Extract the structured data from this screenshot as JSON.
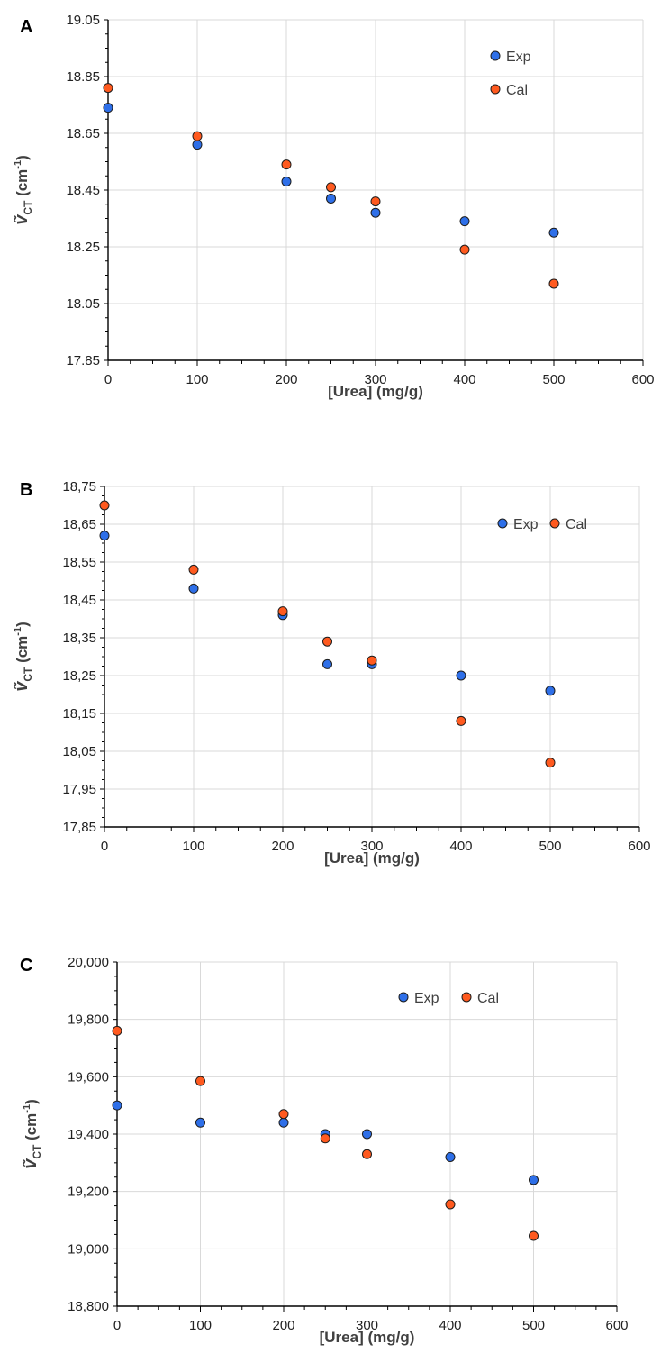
{
  "chart_data": [
    {
      "type": "scatter",
      "panel_label": "A",
      "xlabel": "[Urea] (mg/g)",
      "ylabel_main": "ṽ",
      "ylabel_sub": "CT",
      "ylabel_unit": "(cm",
      "ylabel_sup": "-1",
      "ylabel_close": ")",
      "xlim": [
        0,
        600
      ],
      "ylim": [
        17.85,
        19.05
      ],
      "xticks": [
        0,
        100,
        200,
        300,
        400,
        500,
        600
      ],
      "yticks": [
        17.85,
        18.05,
        18.25,
        18.45,
        18.65,
        18.85,
        19.05
      ],
      "ytick_labels": [
        "17.85",
        "18.05",
        "18.25",
        "18.45",
        "18.65",
        "18.85",
        "19.05"
      ],
      "grid": true,
      "legend_position": "top-right, stacked",
      "series": [
        {
          "name": "Exp",
          "color": "#2e6fe8",
          "x": [
            0,
            100,
            200,
            250,
            300,
            400,
            500
          ],
          "y": [
            18.74,
            18.61,
            18.48,
            18.42,
            18.37,
            18.34,
            18.3
          ]
        },
        {
          "name": "Cal",
          "color": "#ff5a1f",
          "x": [
            0,
            100,
            200,
            250,
            300,
            400,
            500
          ],
          "y": [
            18.81,
            18.64,
            18.54,
            18.46,
            18.41,
            18.24,
            18.12
          ]
        }
      ]
    },
    {
      "type": "scatter",
      "panel_label": "B",
      "xlabel": "[Urea] (mg/g)",
      "ylabel_main": "ṽ",
      "ylabel_sub": "CT",
      "ylabel_unit": "(cm",
      "ylabel_sup": "-1",
      "ylabel_close": ")",
      "xlim": [
        0,
        600
      ],
      "ylim": [
        17.85,
        18.75
      ],
      "xticks": [
        0,
        100,
        200,
        300,
        400,
        500,
        600
      ],
      "yticks": [
        17.85,
        17.95,
        18.05,
        18.15,
        18.25,
        18.35,
        18.45,
        18.55,
        18.65,
        18.75
      ],
      "ytick_labels": [
        "17,85",
        "17,95",
        "18,05",
        "18,15",
        "18,25",
        "18,35",
        "18,45",
        "18,55",
        "18,65",
        "18,75"
      ],
      "grid": true,
      "legend_position": "top-right, inline",
      "series": [
        {
          "name": "Exp",
          "color": "#2e6fe8",
          "x": [
            0,
            100,
            200,
            250,
            300,
            400,
            500
          ],
          "y": [
            18.62,
            18.48,
            18.41,
            18.28,
            18.28,
            18.25,
            18.21
          ]
        },
        {
          "name": "Cal",
          "color": "#ff5a1f",
          "x": [
            0,
            100,
            200,
            250,
            300,
            400,
            500
          ],
          "y": [
            18.7,
            18.53,
            18.42,
            18.34,
            18.29,
            18.13,
            18.02
          ]
        }
      ]
    },
    {
      "type": "scatter",
      "panel_label": "C",
      "xlabel": "[Urea] (mg/g)",
      "ylabel_main": "ṽ",
      "ylabel_sub": "CT",
      "ylabel_unit": "(cm",
      "ylabel_sup": "-1",
      "ylabel_close": ")",
      "xlim": [
        0,
        600
      ],
      "ylim": [
        18800,
        20000
      ],
      "xticks": [
        0,
        100,
        200,
        300,
        400,
        500,
        600
      ],
      "yticks": [
        18800,
        19000,
        19200,
        19400,
        19600,
        19800,
        20000
      ],
      "ytick_labels": [
        "18,800",
        "19,000",
        "19,200",
        "19,400",
        "19,600",
        "19,800",
        "20,000"
      ],
      "grid": true,
      "legend_position": "top-right, inline",
      "series": [
        {
          "name": "Exp",
          "color": "#2e6fe8",
          "x": [
            0,
            100,
            200,
            250,
            300,
            400,
            500
          ],
          "y": [
            19500,
            19440,
            19440,
            19400,
            19400,
            19320,
            19240
          ]
        },
        {
          "name": "Cal",
          "color": "#ff5a1f",
          "x": [
            0,
            100,
            200,
            250,
            300,
            400,
            500
          ],
          "y": [
            19760,
            19585,
            19470,
            19385,
            19330,
            19155,
            19045
          ]
        }
      ]
    }
  ]
}
